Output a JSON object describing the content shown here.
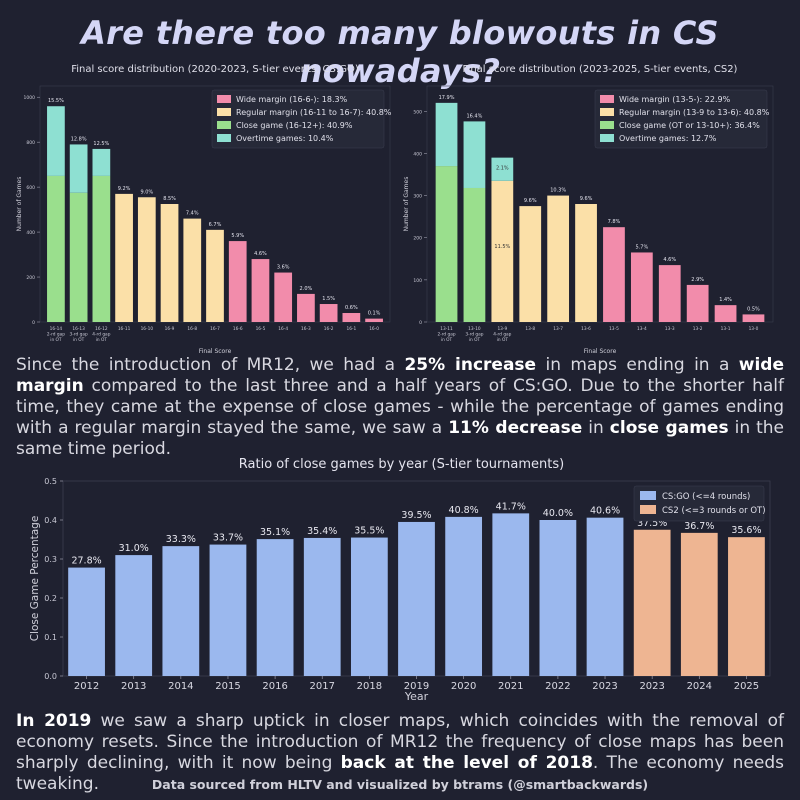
{
  "title": "Are there too many blowouts in CS nowadays?",
  "chart_data": [
    {
      "type": "bar",
      "stacked": true,
      "title": "Final score distribution (2020-2023, S-tier events, CS:GO)",
      "xlabel": "Final Score",
      "ylabel": "Number of Games",
      "ylim": [
        0,
        1050
      ],
      "yticks": [
        0,
        200,
        400,
        600,
        800,
        1000
      ],
      "categories": [
        "16-14\n2-rd gap\nin OT",
        "16-13\n3-rd gap\nin OT",
        "16-12\n4-rd gap\nin OT",
        "16-11",
        "16-10",
        "16-9",
        "16-8",
        "16-7",
        "16-6",
        "16-5",
        "16-4",
        "16-3",
        "16-2",
        "16-1",
        "16-0"
      ],
      "series": [
        {
          "name": "Wide margin (16-6-): 18.3%",
          "color": "#f28cab",
          "values": [
            0,
            0,
            0,
            0,
            0,
            0,
            0,
            0,
            360,
            280,
            220,
            125,
            80,
            40,
            15
          ]
        },
        {
          "name": "Regular margin (16-11 to 16-7): 40.8%",
          "color": "#fbe0a8",
          "values": [
            0,
            0,
            0,
            570,
            555,
            525,
            460,
            410,
            0,
            0,
            0,
            0,
            0,
            0,
            0
          ]
        },
        {
          "name": "Close game (16-12+): 40.9%",
          "color": "#9adf8d",
          "values": [
            650,
            575,
            650,
            0,
            0,
            0,
            0,
            0,
            0,
            0,
            0,
            0,
            0,
            0,
            0
          ]
        },
        {
          "name": "Overtime games: 10.4%",
          "color": "#8ee0d2",
          "values": [
            310,
            215,
            120,
            0,
            0,
            0,
            0,
            0,
            0,
            0,
            0,
            0,
            0,
            0,
            0
          ]
        }
      ],
      "bar_labels": [
        "15.5%",
        "12.8%",
        "12.5%",
        "9.2%",
        "9.0%",
        "8.5%",
        "7.4%",
        "6.7%",
        "5.9%",
        "4.6%",
        "3.6%",
        "2.0%",
        "1.5%",
        "0.6%",
        "0.1%"
      ],
      "legend": "top-right"
    },
    {
      "type": "bar",
      "stacked": true,
      "title": "Final score distribution (2023-2025, S-tier events, CS2)",
      "xlabel": "Final Score",
      "ylabel": "Number of Games",
      "ylim": [
        0,
        560
      ],
      "yticks": [
        0,
        100,
        200,
        300,
        400,
        500
      ],
      "categories": [
        "13-11\n2-rd gap\nin OT",
        "13-10\n3-rd gap\nin OT",
        "13-9\n4-rd gap\nin OT",
        "13-8",
        "13-7",
        "13-6",
        "13-5",
        "13-4",
        "13-3",
        "13-2",
        "13-1",
        "13-0"
      ],
      "series": [
        {
          "name": "Wide margin (13-5-): 22.9%",
          "color": "#f28cab",
          "values": [
            0,
            0,
            0,
            0,
            0,
            0,
            225,
            165,
            135,
            88,
            40,
            18
          ]
        },
        {
          "name": "Regular margin (13-9 to 13-6): 40.8%",
          "color": "#fbe0a8",
          "values": [
            0,
            0,
            335,
            275,
            300,
            280,
            0,
            0,
            0,
            0,
            0,
            0
          ]
        },
        {
          "name": "Close game (OT or 13-10+): 36.4%",
          "color": "#9adf8d",
          "values": [
            370,
            318,
            0,
            0,
            0,
            0,
            0,
            0,
            0,
            0,
            0,
            0
          ]
        },
        {
          "name": "Overtime games: 12.7%",
          "color": "#8ee0d2",
          "values": [
            150,
            158,
            55,
            0,
            0,
            0,
            0,
            0,
            0,
            0,
            0,
            0
          ]
        }
      ],
      "bar_labels": [
        "17.9%",
        "16.4%",
        "",
        "9.6%",
        "10.3%",
        "9.6%",
        "7.8%",
        "5.7%",
        "4.6%",
        "2.9%",
        "1.4%",
        "0.5%"
      ],
      "inner_labels": [
        {
          "index": 2,
          "top": "2.1%",
          "mid": "11.5%"
        }
      ],
      "legend": "top-right"
    },
    {
      "type": "bar",
      "title": "Ratio of close games by year (S-tier tournaments)",
      "xlabel": "Year",
      "ylabel": "Close Game Percentage",
      "ylim": [
        0,
        0.5
      ],
      "yticks": [
        "0.0",
        "0.1",
        "0.2",
        "0.3",
        "0.4",
        "0.5"
      ],
      "categories": [
        "2012",
        "2013",
        "2014",
        "2015",
        "2016",
        "2017",
        "2018",
        "2019",
        "2020",
        "2021",
        "2022",
        "2023",
        "2023",
        "2024",
        "2025"
      ],
      "values": [
        0.278,
        0.31,
        0.333,
        0.337,
        0.351,
        0.354,
        0.355,
        0.395,
        0.408,
        0.417,
        0.4,
        0.406,
        0.375,
        0.367,
        0.356
      ],
      "labels": [
        "27.8%",
        "31.0%",
        "33.3%",
        "33.7%",
        "35.1%",
        "35.4%",
        "35.5%",
        "39.5%",
        "40.8%",
        "41.7%",
        "40.0%",
        "40.6%",
        "37.5%",
        "36.7%",
        "35.6%"
      ],
      "series": [
        {
          "name": "CS:GO (<=4 rounds)",
          "color": "#9bb8ee",
          "count": 12
        },
        {
          "name": "CS2 (<=3 rounds or OT)",
          "color": "#eeb592",
          "count": 3
        }
      ],
      "legend": "top-right"
    }
  ],
  "para1": [
    {
      "t": "Since the introduction of MR12, we had a "
    },
    {
      "t": "25% increase",
      "b": true
    },
    {
      "t": " in maps ending in a "
    },
    {
      "t": "wide margin",
      "b": true
    },
    {
      "t": " compared to the last three and a half years of CS:GO. Due to the shorter half time, they came at the expense of close games - while the percentage of games ending with a regular margin stayed the same, we saw a "
    },
    {
      "t": "11% decrease",
      "b": true
    },
    {
      "t": " in "
    },
    {
      "t": "close games",
      "b": true
    },
    {
      "t": " in the same time period."
    }
  ],
  "para2": [
    {
      "t": "In 2019",
      "b": true
    },
    {
      "t": " we saw a sharp uptick in closer maps, which coincides with the removal of economy resets. Since the introduction of MR12 the frequency of close maps has been sharply declining, with it now being "
    },
    {
      "t": "back at the level of 2018",
      "b": true
    },
    {
      "t": ". The economy needs tweaking."
    }
  ],
  "footer": "Data sourced from HLTV and visualized by btrams (@smartbackwards)"
}
